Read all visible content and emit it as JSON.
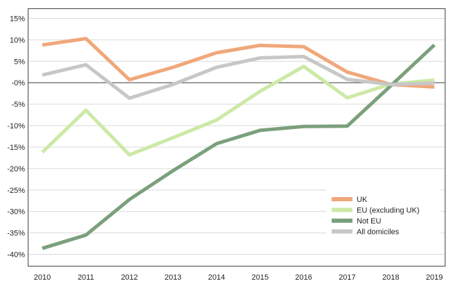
{
  "chart_data": {
    "type": "line",
    "title": "",
    "xlabel": "",
    "ylabel": "",
    "categories": [
      "2010",
      "2011",
      "2012",
      "2013",
      "2014",
      "2015",
      "2016",
      "2017",
      "2018",
      "2019"
    ],
    "ylim": [
      -40,
      15
    ],
    "yticks": [
      15,
      10,
      5,
      0,
      -5,
      -10,
      -15,
      -20,
      -25,
      -30,
      -35,
      -40
    ],
    "ytick_labels": [
      "15%",
      "10%",
      "5%",
      "-0%",
      "-5%",
      "-10%",
      "-15%",
      "-20%",
      "-25%",
      "-30%",
      "-35%",
      "-40%"
    ],
    "grid": true,
    "zero_line": true,
    "legend_position": "bottom-right",
    "series": [
      {
        "name": "UK",
        "color": "#f0a77a",
        "values": [
          8.8,
          10.3,
          0.7,
          3.6,
          7.0,
          8.7,
          8.4,
          2.5,
          -0.4,
          -1.0
        ]
      },
      {
        "name": "EU (excluding UK)",
        "color": "#cce9a6",
        "values": [
          -16.2,
          -6.4,
          -16.8,
          -12.8,
          -8.7,
          -2.0,
          3.8,
          -3.5,
          -0.3,
          0.6
        ]
      },
      {
        "name": "Not EU",
        "color": "#7ba07c",
        "values": [
          -38.6,
          -35.5,
          -27.2,
          -20.5,
          -14.2,
          -11.1,
          -10.2,
          -10.1,
          -0.7,
          8.8
        ]
      },
      {
        "name": "All domiciles",
        "color": "#c7c7c7",
        "values": [
          1.8,
          4.2,
          -3.6,
          -0.4,
          3.6,
          5.8,
          6.1,
          0.8,
          -0.4,
          -0.1
        ]
      }
    ]
  }
}
